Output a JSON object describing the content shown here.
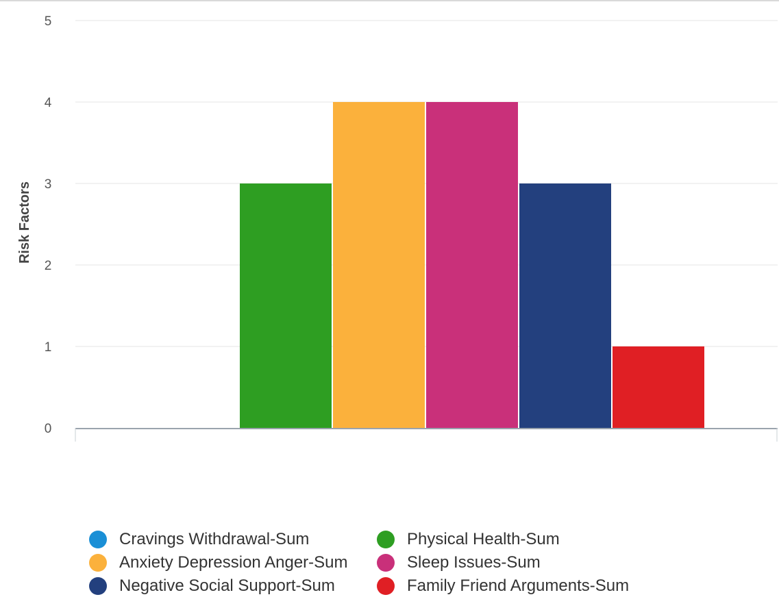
{
  "chart_data": {
    "type": "bar",
    "title": "",
    "xlabel": "",
    "ylabel": "Risk Factors",
    "ylim": [
      0,
      5
    ],
    "yticks": [
      0,
      1,
      2,
      3,
      4,
      5
    ],
    "grid": true,
    "legend_position": "bottom",
    "categories": [
      ""
    ],
    "series": [
      {
        "name": "Cravings Withdrawal-Sum",
        "values": [
          0
        ],
        "color": "#1a8fd6"
      },
      {
        "name": "Physical Health-Sum",
        "values": [
          3
        ],
        "color": "#2e9e22"
      },
      {
        "name": "Anxiety Depression Anger-Sum",
        "values": [
          4
        ],
        "color": "#fbb13c"
      },
      {
        "name": "Sleep Issues-Sum",
        "values": [
          4
        ],
        "color": "#c9307a"
      },
      {
        "name": "Negative Social Support-Sum",
        "values": [
          3
        ],
        "color": "#23407e"
      },
      {
        "name": "Family Friend Arguments-Sum",
        "values": [
          1
        ],
        "color": "#e01f24"
      }
    ]
  }
}
